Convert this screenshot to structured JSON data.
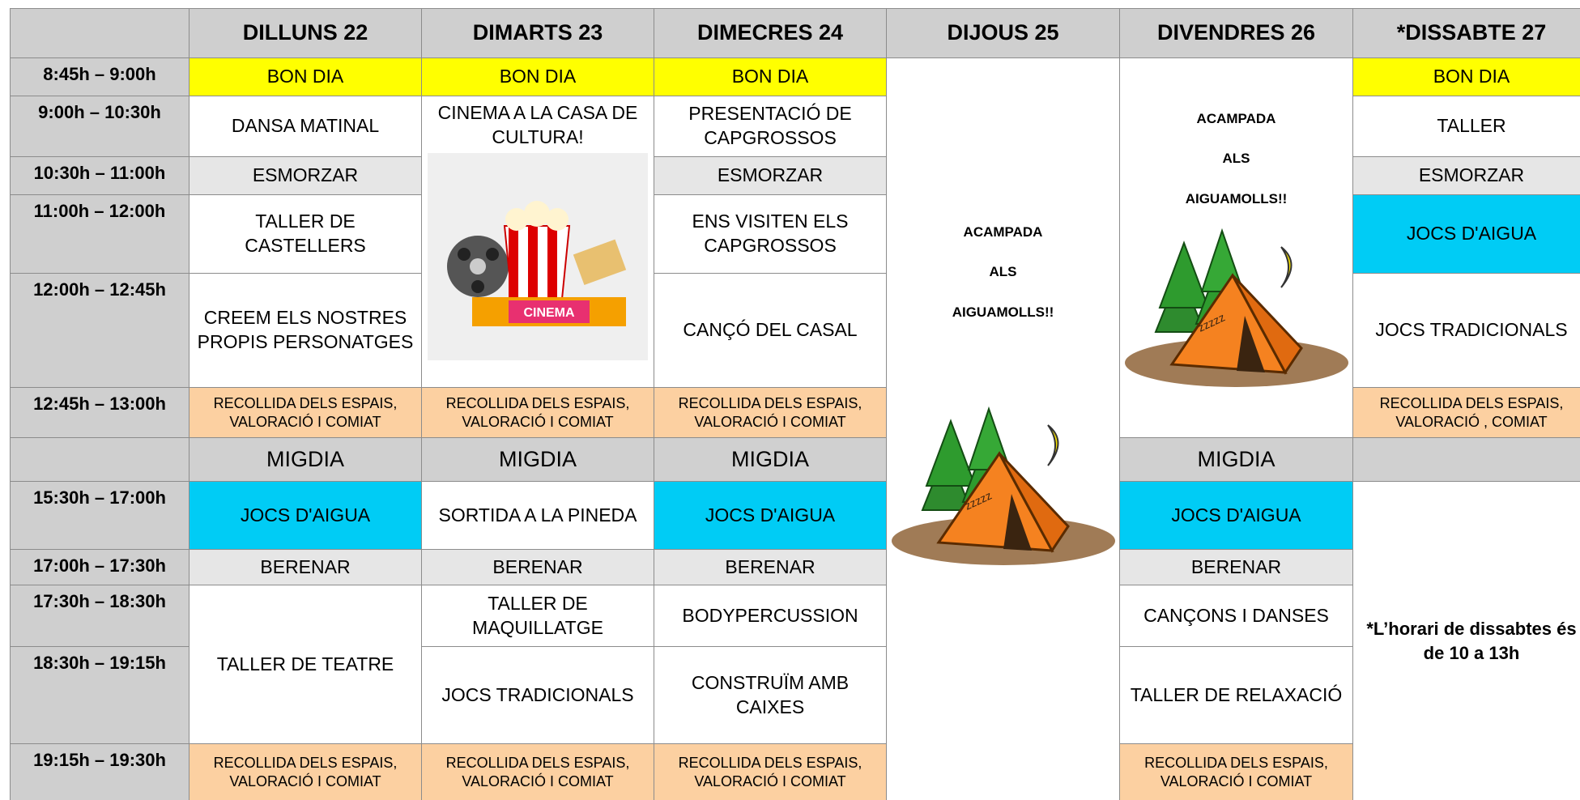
{
  "header": [
    "DILLUNS 22",
    "DIMARTS 23",
    "DIMECRES 24",
    "DIJOUS 25",
    "DIVENDRES 26",
    "*DISSABTE 27"
  ],
  "rows": [
    {
      "time": "8:45h – 9:00h",
      "cells": [
        "BON DIA",
        "BON DIA",
        "BON DIA",
        "ACAMPADA ALS AIGUAMOLLS!!",
        "ACAMPADA ALS AIGUAMOLLS!!",
        "BON DIA"
      ]
    },
    {
      "time": "9:00h – 10:30h",
      "cells": [
        "DANSA MATINAL",
        "CINEMA A LA CASA DE CULTURA!",
        "PRESENTACIÓ DE CAPGROSSOS",
        "TALLER"
      ]
    },
    {
      "time": "10:30h – 11:00h",
      "cells": [
        "ESMORZAR",
        "ESMORZAR",
        "ESMORZAR"
      ]
    },
    {
      "time": "11:00h – 12:00h",
      "cells": [
        "TALLER DE CASTELLERS",
        "ENS VISITEN ELS CAPGROSSOS",
        "JOCS D'AIGUA"
      ]
    },
    {
      "time": "12:00h – 12:45h",
      "cells": [
        "CREEM ELS NOSTRES PROPIS PERSONATGES",
        "CANÇÓ DEL CASAL",
        "JOCS TRADICIONALS"
      ]
    },
    {
      "time": "12:45h – 13:00h",
      "cells": [
        "RECOLLIDA DELS ESPAIS, VALORACIÓ I COMIAT",
        "RECOLLIDA DELS ESPAIS, VALORACIÓ I COMIAT",
        "RECOLLIDA DELS ESPAIS, VALORACIÓ I COMIAT",
        "RECOLLIDA DELS ESPAIS, VALORACIÓ , COMIAT"
      ]
    },
    {
      "cells": [
        "MIGDIA",
        "MIGDIA",
        "MIGDIA",
        "MIGDIA"
      ]
    },
    {
      "time": "15:30h – 17:00h",
      "cells": [
        "JOCS D'AIGUA",
        "SORTIDA A LA PINEDA",
        "JOCS D'AIGUA",
        "JOCS D'AIGUA",
        "*L’horari de dissabtes és de 10 a 13h"
      ]
    },
    {
      "time": "17:00h – 17:30h",
      "cells": [
        "BERENAR",
        "BERENAR",
        "BERENAR",
        "BERENAR"
      ]
    },
    {
      "time": "17:30h – 18:30h",
      "cells": [
        "TALLER DE TEATRE",
        "TALLER DE MAQUILLATGE",
        "BODYPERCUSSION",
        "CANÇONS I DANSES"
      ]
    },
    {
      "time": "18:30h – 19:15h",
      "cells": [
        "JOCS TRADICIONALS",
        "CONSTRUÏM AMB CAIXES",
        "TALLER DE RELAXACIÓ"
      ]
    },
    {
      "time": "19:15h – 19:30h",
      "cells": [
        "RECOLLIDA DELS ESPAIS, VALORACIÓ I COMIAT",
        "RECOLLIDA DELS ESPAIS, VALORACIÓ I COMIAT",
        "RECOLLIDA DELS ESPAIS, VALORACIÓ I COMIAT",
        "RECOLLIDA DELS ESPAIS, VALORACIÓ I COMIAT"
      ]
    }
  ]
}
